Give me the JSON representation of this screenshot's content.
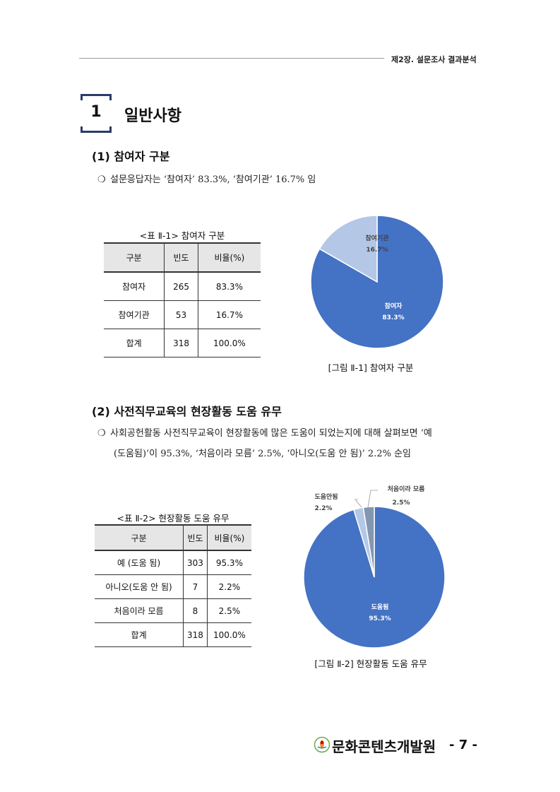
{
  "header": {
    "chapter": "제2장. 설문조사 결과분석"
  },
  "section": {
    "number": "1",
    "title": "일반사항"
  },
  "part1": {
    "heading": "(1) 참여자 구분",
    "bullet_mark": "❍",
    "bullet": "설문응답자는 ‘참여자’ 83.3%, ‘참여기관’ 16.7% 임",
    "table_caption": "<표 Ⅱ-1> 참여자 구분",
    "table": {
      "headers": [
        "구분",
        "빈도",
        "비율(%)"
      ],
      "rows": [
        [
          "참여자",
          "265",
          "83.3%"
        ],
        [
          "참여기관",
          "53",
          "16.7%"
        ],
        [
          "합계",
          "318",
          "100.0%"
        ]
      ]
    },
    "figure_caption": "[그림 Ⅱ-1] 참여자 구분"
  },
  "part2": {
    "heading": "(2) 사전직무교육의 현장활동 도움 유무",
    "bullet_mark": "❍",
    "bullet_line1": "사회공헌활동 사전직무교육이 현장활동에 많은 도움이 되었는지에 대해 살펴보면 ‘예",
    "bullet_line2": "(도움됨)’이 95.3%, ‘처음이라 모름’ 2.5%, ‘아니오(도움 안 됨)’ 2.2% 순임",
    "table_caption": "<표 Ⅱ-2> 현장활동 도움 유무",
    "table": {
      "headers": [
        "구분",
        "빈도",
        "비율(%)"
      ],
      "rows": [
        [
          "예 (도움 됨)",
          "303",
          "95.3%"
        ],
        [
          "아니오(도움 안 됨)",
          "7",
          "2.2%"
        ],
        [
          "처음이라 모름",
          "8",
          "2.5%"
        ],
        [
          "합계",
          "318",
          "100.0%"
        ]
      ]
    },
    "figure_caption": "[그림 Ⅱ-2] 현장활동 도움 유무"
  },
  "chart_data": [
    {
      "type": "pie",
      "categories": [
        "참여자",
        "참여기관"
      ],
      "values": [
        83.3,
        16.7
      ],
      "labels": [
        "83.3%",
        "16.7%"
      ],
      "colors": [
        "#4472c4",
        "#b4c7e7"
      ]
    },
    {
      "type": "pie",
      "categories": [
        "도움됨",
        "도움안됨",
        "처음이라 모름"
      ],
      "values": [
        95.3,
        2.2,
        2.5
      ],
      "labels": [
        "95.3%",
        "2.2%",
        "2.5%"
      ],
      "colors": [
        "#4472c4",
        "#b4c7e7",
        "#8497b0"
      ]
    }
  ],
  "footer": {
    "org": "문화콘텐츠개발원",
    "page": "- 7 -"
  }
}
